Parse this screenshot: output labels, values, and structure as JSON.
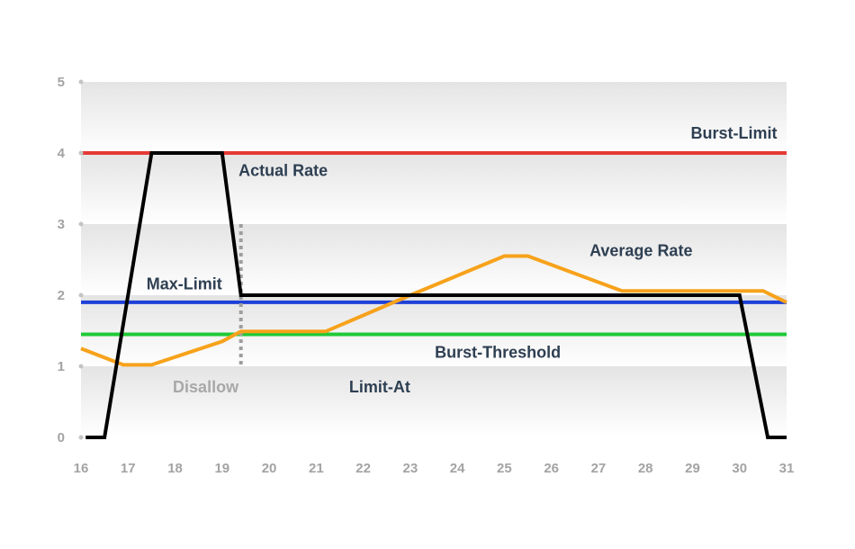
{
  "chart_data": {
    "type": "line",
    "xlim": [
      16,
      31
    ],
    "ylim": [
      0,
      5
    ],
    "x_ticks": [
      "16",
      "17",
      "18",
      "19",
      "20",
      "21",
      "22",
      "23",
      "24",
      "25",
      "26",
      "27",
      "28",
      "29",
      "30",
      "31"
    ],
    "y_ticks": [
      "0",
      "1",
      "2",
      "3",
      "4",
      "5"
    ],
    "series": [
      {
        "name": "Actual Rate",
        "color": "#000000",
        "points": [
          [
            16.1,
            0
          ],
          [
            16.5,
            0
          ],
          [
            17.5,
            4
          ],
          [
            19.0,
            4
          ],
          [
            19.4,
            2
          ],
          [
            30.0,
            2
          ],
          [
            30.6,
            0
          ],
          [
            31.0,
            0
          ]
        ]
      },
      {
        "name": "Average Rate",
        "color": "#f7a21b",
        "points": [
          [
            16.0,
            1.25
          ],
          [
            16.9,
            1.02
          ],
          [
            17.5,
            1.02
          ],
          [
            19.0,
            1.35
          ],
          [
            19.4,
            1.49
          ],
          [
            21.2,
            1.49
          ],
          [
            23.0,
            2.0
          ],
          [
            25.0,
            2.55
          ],
          [
            25.5,
            2.55
          ],
          [
            27.5,
            2.06
          ],
          [
            30.5,
            2.06
          ],
          [
            31.0,
            1.9
          ]
        ]
      }
    ],
    "reference_lines": [
      {
        "name": "Burst-Limit",
        "value": 4.0,
        "color": "#e53935"
      },
      {
        "name": "Max-Limit",
        "value": 1.9,
        "color": "#1e40d8"
      },
      {
        "name": "Burst-Threshold",
        "value": 1.45,
        "color": "#1fc936"
      }
    ],
    "disallow_marker": {
      "x": 19.4,
      "y_range": [
        1.0,
        3.0
      ],
      "color": "#9e9e9e"
    },
    "annotations": [
      {
        "text": "Burst-Limit",
        "x": 30.8,
        "y": 4.2,
        "align": "end",
        "color": "#2e3f52"
      },
      {
        "text": "Actual Rate",
        "x": 19.35,
        "y": 3.68,
        "align": "start",
        "color": "#2e3f52"
      },
      {
        "text": "Average Rate",
        "x": 29.0,
        "y": 2.55,
        "align": "end",
        "color": "#2e3f52"
      },
      {
        "text": "Max-Limit",
        "x": 19.0,
        "y": 2.08,
        "align": "end",
        "color": "#2e3f52"
      },
      {
        "text": "Burst-Threshold",
        "x": 26.2,
        "y": 1.12,
        "align": "end",
        "color": "#2e3f52"
      },
      {
        "text": "Disallow",
        "x": 19.35,
        "y": 0.63,
        "align": "end",
        "color": "#a8a8a8"
      },
      {
        "text": "Limit-At",
        "x": 21.7,
        "y": 0.63,
        "align": "start",
        "color": "#2e3f52"
      }
    ],
    "grid": true
  }
}
